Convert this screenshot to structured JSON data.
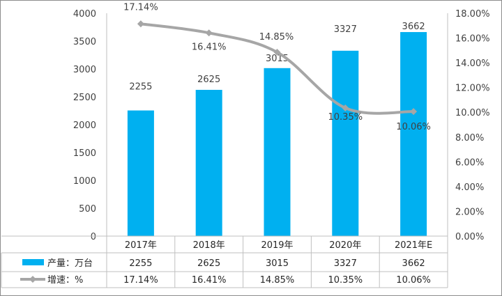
{
  "chart_data": {
    "type": "bar",
    "categories": [
      "2017年",
      "2018年",
      "2019年",
      "2020年",
      "2021年E"
    ],
    "series": [
      {
        "name": "产量：万台",
        "type": "bar",
        "axis": "left",
        "values": [
          2255,
          2625,
          3015,
          3327,
          3662
        ],
        "labels": [
          "2255",
          "2625",
          "3015",
          "3327",
          "3662"
        ],
        "color": "#00b0f0"
      },
      {
        "name": "增速：%",
        "type": "line",
        "axis": "right",
        "values": [
          17.14,
          16.41,
          14.85,
          10.35,
          10.06
        ],
        "labels": [
          "17.14%",
          "16.41%",
          "14.85%",
          "10.35%",
          "10.06%"
        ],
        "color": "#a6a6a6"
      }
    ],
    "y_left": {
      "ylim": [
        0,
        4000
      ],
      "ticks": [
        "0",
        "500",
        "1000",
        "1500",
        "2000",
        "2500",
        "3000",
        "3500",
        "4000"
      ]
    },
    "y_right": {
      "ylim": [
        0,
        18
      ],
      "ticks": [
        "0.00%",
        "2.00%",
        "4.00%",
        "6.00%",
        "8.00%",
        "10.00%",
        "12.00%",
        "14.00%",
        "16.00%",
        "18.00%"
      ]
    },
    "grid": false,
    "legend": "data-table",
    "table": {
      "rows": [
        {
          "legend": "产量：万台",
          "cells": [
            "2255",
            "2625",
            "3015",
            "3327",
            "3662"
          ]
        },
        {
          "legend": "增速：%",
          "cells": [
            "17.14%",
            "16.41%",
            "14.85%",
            "10.35%",
            "10.06%"
          ]
        }
      ]
    }
  }
}
